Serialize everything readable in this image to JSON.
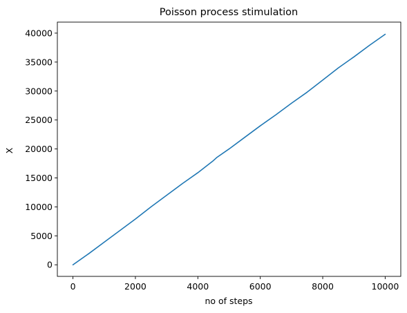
{
  "chart_data": {
    "type": "line",
    "title": "Poisson process stimulation",
    "xlabel": "no of steps",
    "ylabel": "X",
    "xlim": [
      -500,
      10500
    ],
    "ylim": [
      -2000,
      41900
    ],
    "xticks": [
      0,
      2000,
      4000,
      6000,
      8000,
      10000
    ],
    "yticks": [
      0,
      5000,
      10000,
      15000,
      20000,
      25000,
      30000,
      35000,
      40000
    ],
    "xtick_labels": [
      "0",
      "2000",
      "4000",
      "6000",
      "8000",
      "10000"
    ],
    "ytick_labels": [
      "0",
      "5000",
      "10000",
      "15000",
      "20000",
      "25000",
      "30000",
      "35000",
      "40000"
    ],
    "grid": false,
    "series": [
      {
        "color": "#1f77b4",
        "x": [
          0,
          500,
          1000,
          1500,
          2000,
          2500,
          3000,
          3500,
          4000,
          4500,
          4600,
          5000,
          5500,
          6000,
          6500,
          7000,
          7500,
          8000,
          8500,
          9000,
          9500,
          10000
        ],
        "values": [
          0,
          1900,
          3900,
          5900,
          7900,
          10000,
          12000,
          14000,
          15900,
          18000,
          18500,
          20000,
          22000,
          24000,
          25900,
          27900,
          29800,
          31900,
          34000,
          35900,
          37900,
          39800
        ]
      }
    ]
  }
}
